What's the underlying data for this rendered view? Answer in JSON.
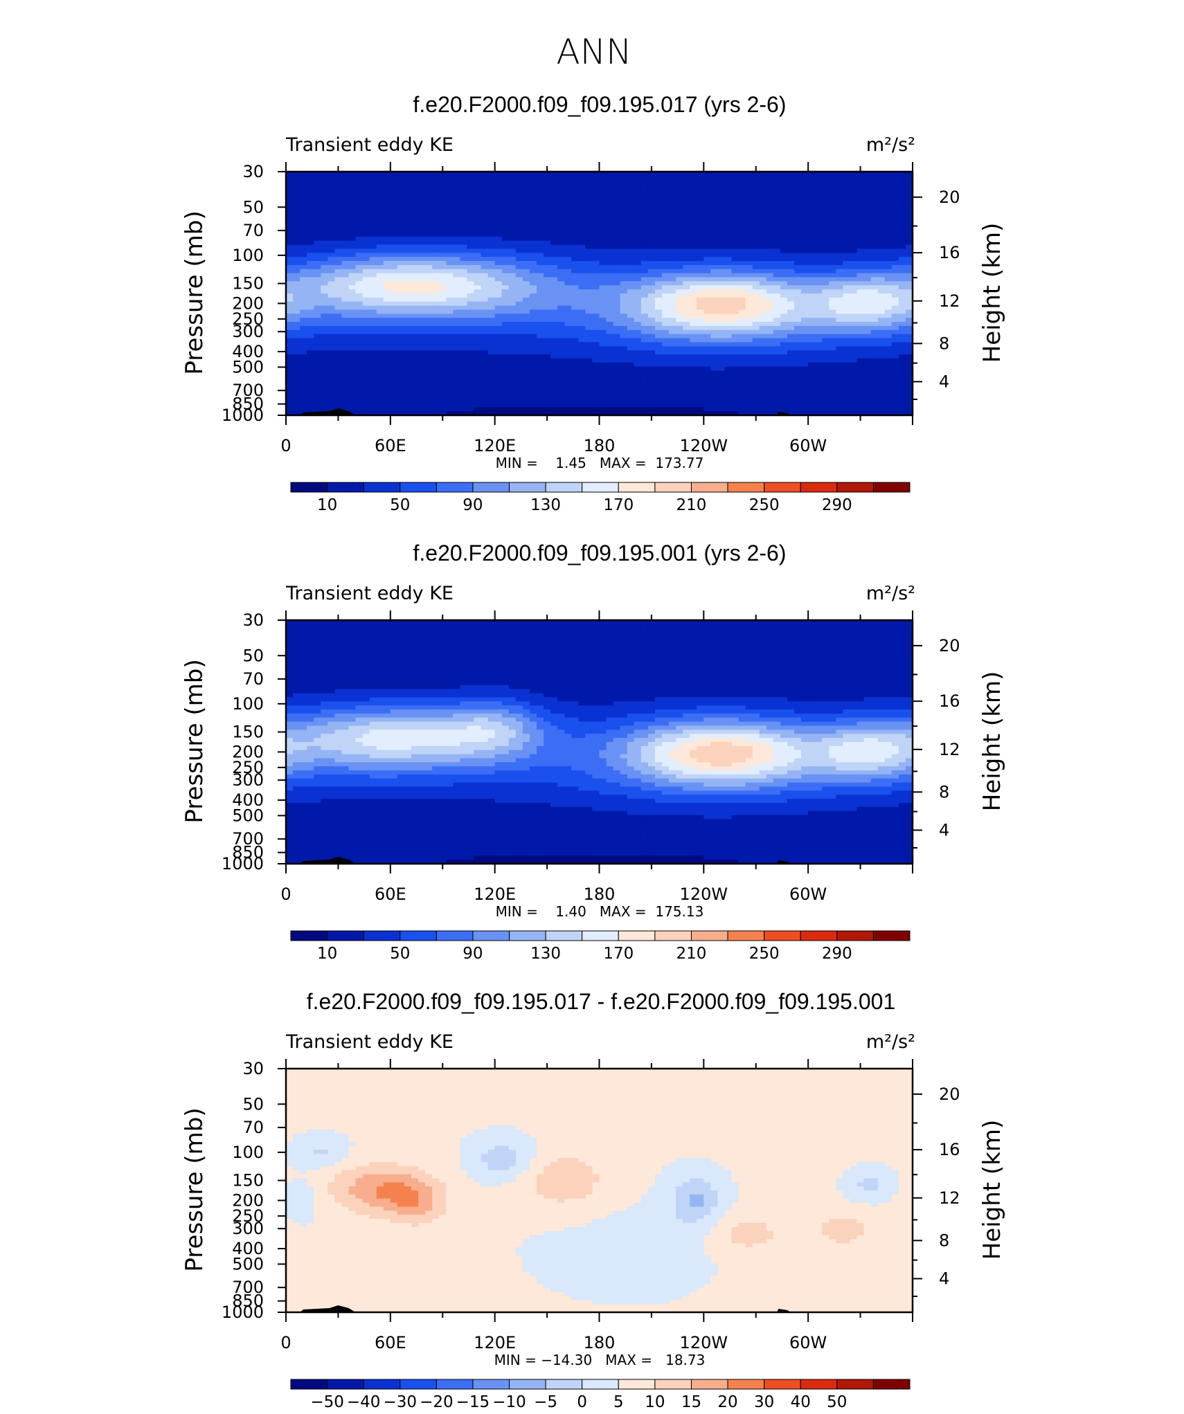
{
  "page_title": "ANN",
  "colors": {
    "abs_levels": [
      "#000a80",
      "#0019a8",
      "#0a32d2",
      "#1a50ee",
      "#3c6ef5",
      "#6992f4",
      "#95b4f4",
      "#c0d4f7",
      "#e2eefd",
      "#fde8d9",
      "#fbd2bc",
      "#f8ae8d",
      "#f5824e",
      "#ef4e22",
      "#da2b0e",
      "#b21807",
      "#800000"
    ],
    "diff_levels": [
      "#000a80",
      "#0019a8",
      "#0a32d2",
      "#1a50ee",
      "#3c6ef5",
      "#6992f4",
      "#95b4f4",
      "#c0d4f7",
      "#d9e8fb",
      "#fde8d9",
      "#fbd2bc",
      "#f8ae8d",
      "#f5824e",
      "#ef4e22",
      "#da2b0e",
      "#b21807",
      "#800000"
    ],
    "topography": "#000000"
  },
  "chart_data": [
    {
      "type": "heatmap",
      "title": "f.e20.F2000.f09_f09.195.017 (yrs 2-6)",
      "left_label": "Transient eddy KE",
      "units": "m²/s²",
      "ylabel": "Pressure (mb)",
      "ylabel2": "Height (km)",
      "x_ticks": [
        "0",
        "60E",
        "120E",
        "180",
        "120W",
        "60W"
      ],
      "x_tick_lon": [
        0,
        60,
        120,
        180,
        240,
        300
      ],
      "xlim": [
        0,
        360
      ],
      "y_ticks": [
        "30",
        "50",
        "70",
        "100",
        "150",
        "200",
        "250",
        "300",
        "400",
        "500",
        "700",
        "850",
        "1000"
      ],
      "y_tick_p": [
        30,
        50,
        70,
        100,
        150,
        200,
        250,
        300,
        400,
        500,
        700,
        850,
        1000
      ],
      "ylim": [
        1000,
        30
      ],
      "y2_ticks": [
        "20",
        "16",
        "12",
        "8",
        "4"
      ],
      "y2_tick_km": [
        20,
        16,
        12,
        8,
        4
      ],
      "stats": "MIN =    1.45   MAX =  173.77",
      "min": 1.45,
      "max": 173.77,
      "colorbar_labels": [
        "10",
        "50",
        "90",
        "130",
        "170",
        "210",
        "250",
        "290"
      ],
      "colorbar_values": [
        10,
        50,
        90,
        130,
        170,
        210,
        250,
        290
      ],
      "field": {
        "background": 10,
        "blobs": [
          {
            "lon": 65,
            "p": 150,
            "sx": 45,
            "sy": 0.32,
            "amp": 115
          },
          {
            "lon": 60,
            "p": 200,
            "sx": 70,
            "sy": 0.4,
            "amp": 30
          },
          {
            "lon": 250,
            "p": 200,
            "sx": 38,
            "sy": 0.34,
            "amp": 135
          },
          {
            "lon": 250,
            "p": 250,
            "sx": 75,
            "sy": 0.45,
            "amp": 40
          },
          {
            "lon": 335,
            "p": 200,
            "sx": 22,
            "sy": 0.3,
            "amp": 90
          },
          {
            "lon": 130,
            "p": 150,
            "sx": 40,
            "sy": 0.35,
            "amp": 35
          },
          {
            "lon": 180,
            "p": 200,
            "sx": 200,
            "sy": 0.6,
            "amp": 20
          },
          {
            "lon": 180,
            "p": 1000,
            "sx": 40,
            "sy": 0.08,
            "amp": -8
          }
        ]
      }
    },
    {
      "type": "heatmap",
      "title": "f.e20.F2000.f09_f09.195.001 (yrs 2-6)",
      "left_label": "Transient eddy KE",
      "units": "m²/s²",
      "ylabel": "Pressure (mb)",
      "ylabel2": "Height (km)",
      "x_ticks": [
        "0",
        "60E",
        "120E",
        "180",
        "120W",
        "60W"
      ],
      "x_tick_lon": [
        0,
        60,
        120,
        180,
        240,
        300
      ],
      "xlim": [
        0,
        360
      ],
      "y_ticks": [
        "30",
        "50",
        "70",
        "100",
        "150",
        "200",
        "250",
        "300",
        "400",
        "500",
        "700",
        "850",
        "1000"
      ],
      "y_tick_p": [
        30,
        50,
        70,
        100,
        150,
        200,
        250,
        300,
        400,
        500,
        700,
        850,
        1000
      ],
      "ylim": [
        1000,
        30
      ],
      "y2_ticks": [
        "20",
        "16",
        "12",
        "8",
        "4"
      ],
      "y2_tick_km": [
        20,
        16,
        12,
        8,
        4
      ],
      "stats": "MIN =    1.40   MAX =  175.13",
      "min": 1.4,
      "max": 175.13,
      "colorbar_labels": [
        "10",
        "50",
        "90",
        "130",
        "170",
        "210",
        "250",
        "290"
      ],
      "colorbar_values": [
        10,
        50,
        90,
        130,
        170,
        210,
        250,
        290
      ],
      "field": {
        "background": 10,
        "blobs": [
          {
            "lon": 60,
            "p": 160,
            "sx": 45,
            "sy": 0.33,
            "amp": 105
          },
          {
            "lon": 60,
            "p": 200,
            "sx": 70,
            "sy": 0.4,
            "amp": 30
          },
          {
            "lon": 250,
            "p": 200,
            "sx": 38,
            "sy": 0.34,
            "amp": 140
          },
          {
            "lon": 250,
            "p": 250,
            "sx": 75,
            "sy": 0.45,
            "amp": 40
          },
          {
            "lon": 335,
            "p": 200,
            "sx": 22,
            "sy": 0.3,
            "amp": 85
          },
          {
            "lon": 120,
            "p": 140,
            "sx": 20,
            "sy": 0.3,
            "amp": 60
          },
          {
            "lon": 180,
            "p": 200,
            "sx": 200,
            "sy": 0.6,
            "amp": 20
          },
          {
            "lon": 180,
            "p": 1000,
            "sx": 40,
            "sy": 0.08,
            "amp": -8
          }
        ]
      }
    },
    {
      "type": "heatmap",
      "title": "f.e20.F2000.f09_f09.195.017 - f.e20.F2000.f09_f09.195.001",
      "left_label": "Transient eddy KE",
      "units": "m²/s²",
      "ylabel": "Pressure (mb)",
      "ylabel2": "Height (km)",
      "x_ticks": [
        "0",
        "60E",
        "120E",
        "180",
        "120W",
        "60W"
      ],
      "x_tick_lon": [
        0,
        60,
        120,
        180,
        240,
        300
      ],
      "xlim": [
        0,
        360
      ],
      "y_ticks": [
        "30",
        "50",
        "70",
        "100",
        "150",
        "200",
        "250",
        "300",
        "400",
        "500",
        "700",
        "850",
        "1000"
      ],
      "y_tick_p": [
        30,
        50,
        70,
        100,
        150,
        200,
        250,
        300,
        400,
        500,
        700,
        850,
        1000
      ],
      "ylim": [
        1000,
        30
      ],
      "y2_ticks": [
        "20",
        "16",
        "12",
        "8",
        "4"
      ],
      "y2_tick_km": [
        20,
        16,
        12,
        8,
        4
      ],
      "stats": "MIN = −14.30   MAX =   18.73",
      "min": -14.3,
      "max": 18.73,
      "colorbar_labels": [
        "−50",
        "−40",
        "−30",
        "−20",
        "−15",
        "−10",
        "−5",
        "0",
        "5",
        "10",
        "15",
        "20",
        "30",
        "40",
        "50"
      ],
      "colorbar_values": [
        -50,
        -40,
        -30,
        -20,
        -15,
        -10,
        -5,
        0,
        5,
        10,
        15,
        20,
        30,
        40,
        50
      ],
      "field": {
        "background": 0.5,
        "blobs": [
          {
            "lon": 55,
            "p": 170,
            "sx": 20,
            "sy": 0.25,
            "amp": 14
          },
          {
            "lon": 75,
            "p": 210,
            "sx": 12,
            "sy": 0.22,
            "amp": 9
          },
          {
            "lon": 160,
            "p": 150,
            "sx": 18,
            "sy": 0.3,
            "amp": 8
          },
          {
            "lon": 125,
            "p": 110,
            "sx": 12,
            "sy": 0.2,
            "amp": -9
          },
          {
            "lon": 235,
            "p": 200,
            "sx": 10,
            "sy": 0.25,
            "amp": -11
          },
          {
            "lon": 265,
            "p": 320,
            "sx": 14,
            "sy": 0.2,
            "amp": 7
          },
          {
            "lon": 320,
            "p": 300,
            "sx": 12,
            "sy": 0.18,
            "amp": 6
          },
          {
            "lon": 335,
            "p": 160,
            "sx": 8,
            "sy": 0.15,
            "amp": -7
          },
          {
            "lon": 20,
            "p": 100,
            "sx": 10,
            "sy": 0.15,
            "amp": -6
          },
          {
            "lon": 10,
            "p": 200,
            "sx": 6,
            "sy": 0.2,
            "amp": -5
          },
          {
            "lon": 200,
            "p": 400,
            "sx": 40,
            "sy": 0.5,
            "amp": -2
          },
          {
            "lon": 330,
            "p": 600,
            "sx": 40,
            "sy": 0.5,
            "amp": 2
          },
          {
            "lon": 290,
            "p": 40,
            "sx": 50,
            "sy": 0.35,
            "amp": 2
          }
        ]
      }
    }
  ]
}
